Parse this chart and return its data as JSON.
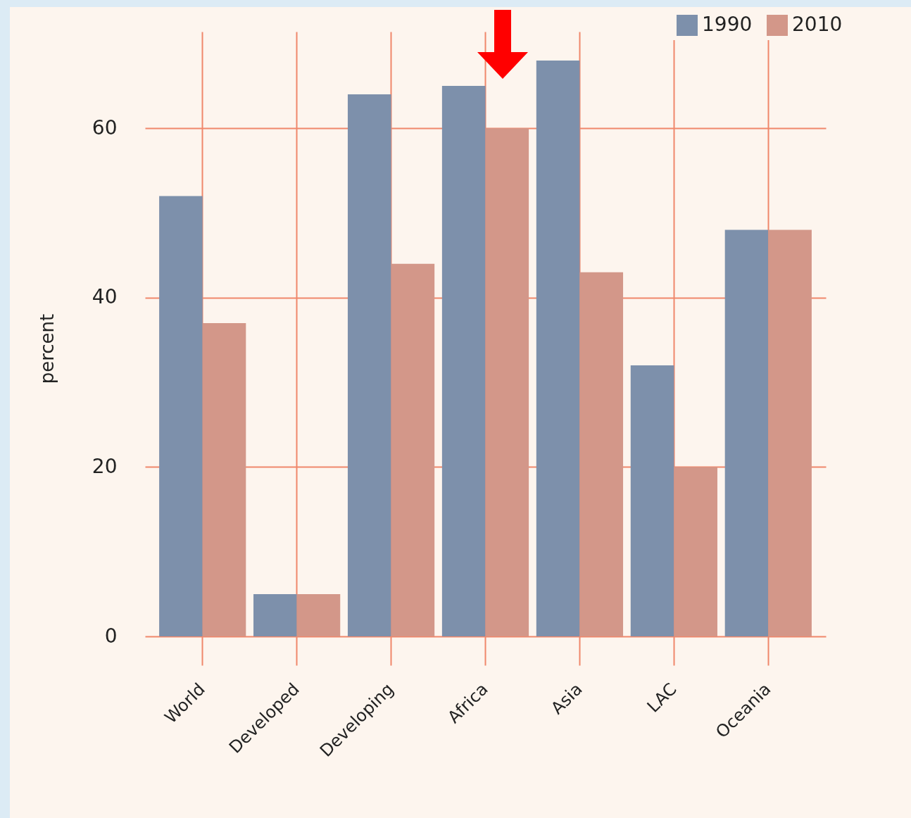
{
  "chart_data": {
    "type": "bar",
    "ylabel": "percent",
    "categories": [
      "World",
      "Developed",
      "Developing",
      "Africa",
      "Asia",
      "LAC",
      "Oceania"
    ],
    "series": [
      {
        "name": "1990",
        "color": "#7d90ab",
        "values": [
          52,
          5,
          64,
          65,
          68,
          32,
          48
        ]
      },
      {
        "name": "2010",
        "color": "#d39789",
        "values": [
          37,
          5,
          44,
          60,
          43,
          20,
          48
        ]
      }
    ],
    "ylim": [
      -3.4,
      71.4
    ],
    "yticks": [
      0,
      20,
      40,
      60
    ],
    "grid": true,
    "legend": "top right"
  }
}
